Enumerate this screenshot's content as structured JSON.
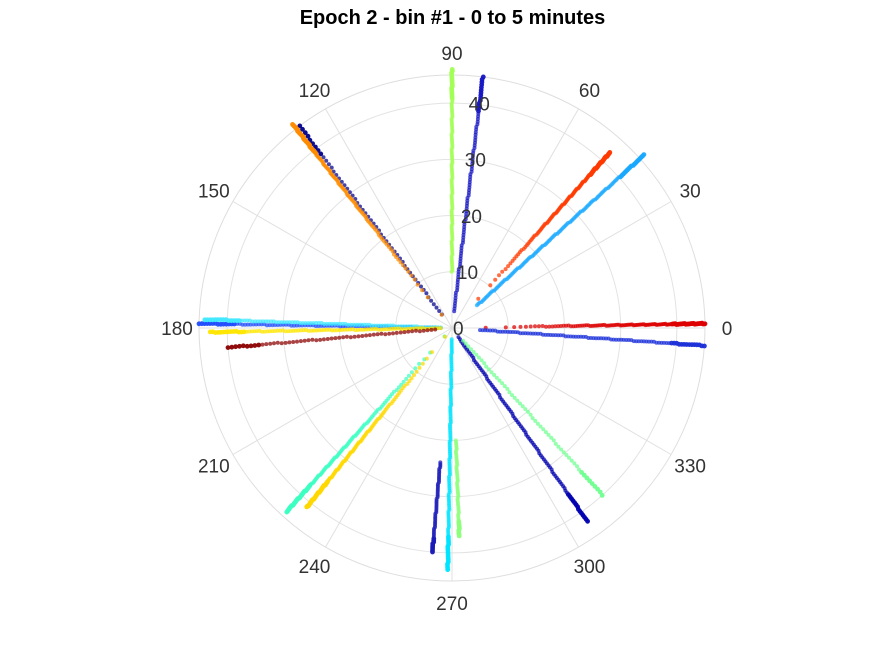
{
  "chart_data": {
    "type": "scatter",
    "coordinate_system": "polar",
    "title": "Epoch 2 - bin #1 - 0 to 5 minutes",
    "theta_unit": "degrees",
    "theta_ticks": [
      "0",
      "30",
      "60",
      "90",
      "120",
      "150",
      "180",
      "210",
      "240",
      "270",
      "300",
      "330"
    ],
    "theta_tick_values": [
      0,
      30,
      60,
      90,
      120,
      150,
      180,
      210,
      240,
      270,
      300,
      330
    ],
    "r_ticks": [
      "0",
      "10",
      "20",
      "30",
      "40"
    ],
    "r_tick_values": [
      0,
      10,
      20,
      30,
      40
    ],
    "rlim": [
      0,
      45
    ],
    "grid": true,
    "colormap": "jet",
    "series": [
      {
        "theta": 1,
        "r_start": 6,
        "r_end": 45,
        "color": "#dd0000",
        "density": "dense-outer"
      },
      {
        "theta": 356,
        "r_start": 5,
        "r_end": 45,
        "color": "#1a2ed8",
        "density": "medium"
      },
      {
        "theta": 48,
        "r_start": 7,
        "r_end": 42,
        "color": "#ff3a00",
        "density": "dense-outer"
      },
      {
        "theta": 42,
        "r_start": 6,
        "r_end": 46,
        "color": "#19a8ff",
        "density": "dense"
      },
      {
        "theta": 90,
        "r_start": 10,
        "r_end": 46,
        "color": "#a2ff55",
        "density": "dense"
      },
      {
        "theta": 83,
        "r_start": 3,
        "r_end": 45,
        "color": "#1515c4",
        "density": "medium"
      },
      {
        "theta": 127,
        "r_start": 3,
        "r_end": 45,
        "color": "#00008b",
        "density": "sparse"
      },
      {
        "theta": 128,
        "r_start": 3,
        "r_end": 46,
        "color": "#ff8c00",
        "density": "dense-outer"
      },
      {
        "theta": 179,
        "r_start": 2,
        "r_end": 45,
        "color": "#1f4cff",
        "density": "medium"
      },
      {
        "theta": 178,
        "r_start": 2,
        "r_end": 44,
        "color": "#3fe8ff",
        "density": "medium"
      },
      {
        "theta": 181,
        "r_start": 2,
        "r_end": 43,
        "color": "#ffe600",
        "density": "medium"
      },
      {
        "theta": 185,
        "r_start": 3,
        "r_end": 40,
        "color": "#8b0000",
        "density": "sparse"
      },
      {
        "theta": 228,
        "r_start": 2,
        "r_end": 44,
        "color": "#3dffc2",
        "density": "dense-outer"
      },
      {
        "theta": 231,
        "r_start": 2,
        "r_end": 41,
        "color": "#ffd800",
        "density": "dense-outer"
      },
      {
        "theta": 269,
        "r_start": 2,
        "r_end": 43,
        "color": "#00e5ff",
        "density": "dense"
      },
      {
        "theta": 272,
        "r_start": 20,
        "r_end": 37,
        "color": "#8cff7a",
        "density": "sparse"
      },
      {
        "theta": 265,
        "r_start": 24,
        "r_end": 40,
        "color": "#1a1ab8",
        "density": "sparse"
      },
      {
        "theta": 305,
        "r_start": 2,
        "r_end": 42,
        "color": "#0000b0",
        "density": "medium"
      },
      {
        "theta": 312,
        "r_start": 3,
        "r_end": 40,
        "color": "#6eff8e",
        "density": "sparse"
      }
    ]
  }
}
